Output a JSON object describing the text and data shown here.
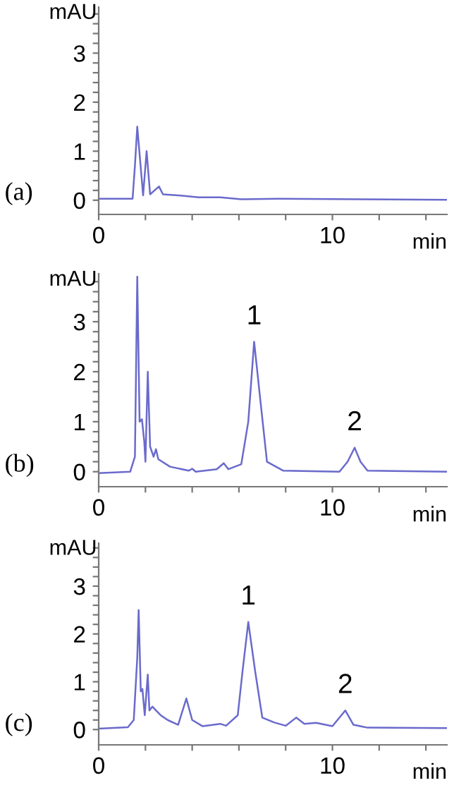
{
  "chart_data": [
    {
      "type": "line",
      "xlabel": "min",
      "ylabel": "mAU",
      "annotations": [
        "(a)"
      ],
      "legend": false,
      "grid": false,
      "marker": "none",
      "line_style": "solid",
      "xlim": [
        0,
        14.9
      ],
      "ylim": [
        -0.29,
        3.94
      ],
      "xticks": [
        0,
        {
          "value": 2,
          "label": null
        },
        {
          "value": 4,
          "label": null
        },
        {
          "value": 6,
          "label": null
        },
        {
          "value": 8,
          "label": null
        },
        10,
        {
          "value": 12,
          "label": null
        },
        {
          "value": 14,
          "label": null
        }
      ],
      "yticks": [
        0,
        {
          "value": 0.2,
          "label": null
        },
        {
          "value": 0.4,
          "label": null
        },
        {
          "value": 0.6,
          "label": null
        },
        {
          "value": 0.8,
          "label": null
        },
        1,
        {
          "value": 1.2,
          "label": null
        },
        {
          "value": 1.4,
          "label": null
        },
        {
          "value": 1.6,
          "label": null
        },
        {
          "value": 1.8,
          "label": null
        },
        2,
        {
          "value": 2.2,
          "label": null
        },
        {
          "value": 2.4,
          "label": null
        },
        {
          "value": 2.6,
          "label": null
        },
        {
          "value": 2.8,
          "label": null
        },
        3,
        {
          "value": 3.2,
          "label": null
        },
        {
          "value": 3.4,
          "label": null
        },
        {
          "value": 3.6,
          "label": null
        },
        {
          "value": 3.8,
          "label": null
        }
      ],
      "series": [
        {
          "color": "#6a6acc",
          "x": [
            0,
            1.45,
            1.55,
            1.65,
            1.9,
            2.05,
            2.2,
            2.58,
            2.75,
            3.4,
            4.27,
            5.2,
            6.1,
            7.7,
            14.9
          ],
          "values": [
            0.03,
            0.03,
            0.7,
            1.5,
            0.1,
            1.0,
            0.12,
            0.28,
            0.12,
            0.1,
            0.06,
            0.06,
            0.02,
            0.03,
            0.01
          ]
        }
      ]
    },
    {
      "type": "line",
      "xlabel": "min",
      "ylabel": "mAU",
      "annotations": [
        "(b)",
        {
          "text": "1",
          "x": 6.65,
          "y": 2.6
        },
        {
          "text": "2",
          "x": 10.95,
          "y": 0.48
        }
      ],
      "legend": false,
      "grid": false,
      "marker": "none",
      "line_style": "solid",
      "xlim": [
        0,
        14.9
      ],
      "ylim": [
        -0.3,
        3.96
      ],
      "xticks": [
        0,
        {
          "value": 2,
          "label": null
        },
        {
          "value": 4,
          "label": null
        },
        {
          "value": 6,
          "label": null
        },
        {
          "value": 8,
          "label": null
        },
        10,
        {
          "value": 12,
          "label": null
        },
        {
          "value": 14,
          "label": null
        }
      ],
      "yticks": [
        0,
        {
          "value": 0.2,
          "label": null
        },
        {
          "value": 0.4,
          "label": null
        },
        {
          "value": 0.6,
          "label": null
        },
        {
          "value": 0.8,
          "label": null
        },
        1,
        {
          "value": 1.2,
          "label": null
        },
        {
          "value": 1.4,
          "label": null
        },
        {
          "value": 1.6,
          "label": null
        },
        {
          "value": 1.8,
          "label": null
        },
        2,
        {
          "value": 2.2,
          "label": null
        },
        {
          "value": 2.4,
          "label": null
        },
        {
          "value": 2.6,
          "label": null
        },
        {
          "value": 2.8,
          "label": null
        },
        3,
        {
          "value": 3.2,
          "label": null
        },
        {
          "value": 3.4,
          "label": null
        },
        {
          "value": 3.6,
          "label": null
        },
        {
          "value": 3.8,
          "label": null
        }
      ],
      "series": [
        {
          "color": "#6a6acc",
          "x": [
            0,
            1.35,
            1.55,
            1.65,
            1.75,
            1.85,
            1.95,
            2.0,
            2.1,
            2.2,
            2.35,
            2.45,
            2.55,
            3.05,
            3.85,
            4.0,
            4.15,
            5.05,
            5.35,
            5.55,
            6.1,
            6.4,
            6.65,
            6.9,
            7.2,
            7.9,
            10.3,
            10.65,
            10.95,
            11.2,
            11.5,
            14.9
          ],
          "values": [
            -0.03,
            0.0,
            0.3,
            3.9,
            1.0,
            1.05,
            0.6,
            0.2,
            2.0,
            0.5,
            0.3,
            0.45,
            0.25,
            0.1,
            0.02,
            0.06,
            0.0,
            0.05,
            0.17,
            0.05,
            0.15,
            1.0,
            2.6,
            1.5,
            0.2,
            0.02,
            0.0,
            0.2,
            0.48,
            0.2,
            0.02,
            0.0
          ]
        }
      ]
    },
    {
      "type": "line",
      "xlabel": "min",
      "ylabel": "mAU",
      "annotations": [
        "(c)",
        {
          "text": "1",
          "x": 6.4,
          "y": 2.25
        },
        {
          "text": "2",
          "x": 10.55,
          "y": 0.4
        }
      ],
      "legend": false,
      "grid": false,
      "marker": "none",
      "line_style": "solid",
      "xlim": [
        0,
        14.9
      ],
      "ylim": [
        -0.32,
        3.9
      ],
      "xticks": [
        0,
        {
          "value": 2,
          "label": null
        },
        {
          "value": 4,
          "label": null
        },
        {
          "value": 6,
          "label": null
        },
        {
          "value": 8,
          "label": null
        },
        10,
        {
          "value": 12,
          "label": null
        },
        {
          "value": 14,
          "label": null
        }
      ],
      "yticks": [
        0,
        {
          "value": 0.2,
          "label": null
        },
        {
          "value": 0.4,
          "label": null
        },
        {
          "value": 0.6,
          "label": null
        },
        {
          "value": 0.8,
          "label": null
        },
        1,
        {
          "value": 1.2,
          "label": null
        },
        {
          "value": 1.4,
          "label": null
        },
        {
          "value": 1.6,
          "label": null
        },
        {
          "value": 1.8,
          "label": null
        },
        2,
        {
          "value": 2.2,
          "label": null
        },
        {
          "value": 2.4,
          "label": null
        },
        {
          "value": 2.6,
          "label": null
        },
        {
          "value": 2.8,
          "label": null
        },
        3,
        {
          "value": 3.2,
          "label": null
        },
        {
          "value": 3.4,
          "label": null
        },
        {
          "value": 3.6,
          "label": null
        },
        {
          "value": 3.8,
          "label": null
        }
      ],
      "series": [
        {
          "color": "#6a6acc",
          "x": [
            0,
            1.25,
            1.5,
            1.65,
            1.71,
            1.8,
            1.87,
            1.97,
            2.1,
            2.17,
            2.3,
            2.45,
            2.65,
            2.95,
            3.4,
            3.75,
            4.0,
            4.45,
            5.2,
            5.45,
            5.95,
            6.15,
            6.4,
            6.7,
            7.0,
            7.5,
            8.0,
            8.45,
            8.8,
            9.3,
            10.0,
            10.55,
            10.9,
            11.5,
            14.9
          ],
          "values": [
            0.02,
            0.05,
            0.2,
            1.5,
            2.5,
            0.8,
            0.85,
            0.3,
            1.15,
            0.4,
            0.48,
            0.4,
            0.3,
            0.2,
            0.1,
            0.65,
            0.2,
            0.07,
            0.12,
            0.08,
            0.3,
            1.2,
            2.25,
            1.2,
            0.25,
            0.15,
            0.08,
            0.25,
            0.12,
            0.14,
            0.07,
            0.4,
            0.1,
            0.04,
            0.03
          ]
        }
      ]
    }
  ]
}
